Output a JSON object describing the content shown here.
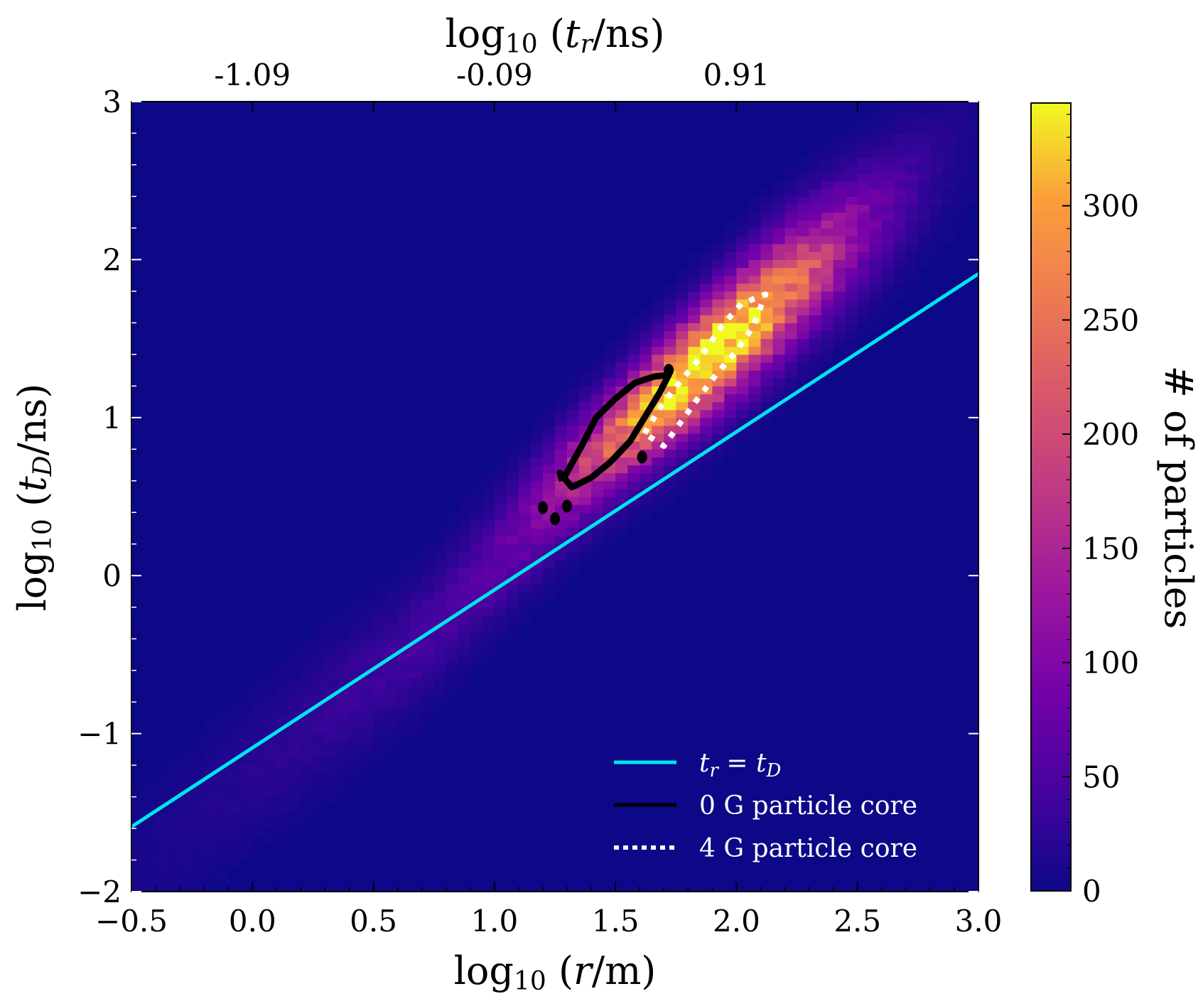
{
  "chart_data": {
    "type": "heatmap",
    "title": "",
    "xlabel": "log10(r/m)",
    "ylabel": "log10(tD/ns)",
    "top_xlabel": "log10(tr/ns)",
    "xlim": [
      -0.5,
      3.0
    ],
    "ylim": [
      -2,
      3
    ],
    "x_ticks": [
      "−0.5",
      "0.0",
      "0.5",
      "1.0",
      "1.5",
      "2.0",
      "2.5",
      "3.0"
    ],
    "x_tick_values": [
      -0.5,
      0.0,
      0.5,
      1.0,
      1.5,
      2.0,
      2.5,
      3.0
    ],
    "y_ticks": [
      "−2",
      "−1",
      "0",
      "1",
      "2",
      "3"
    ],
    "y_tick_values": [
      -2,
      -1,
      0,
      1,
      2,
      3
    ],
    "top_x_ticks": [
      "-1.09",
      "-0.09",
      "0.91"
    ],
    "top_x_tick_values": [
      0.0,
      1.0,
      2.0
    ],
    "colorbar": {
      "label": "# of particles",
      "range": [
        0,
        345
      ],
      "ticks": [
        "0",
        "50",
        "100",
        "150",
        "200",
        "250",
        "300"
      ],
      "tick_values": [
        0,
        50,
        100,
        150,
        200,
        250,
        300
      ],
      "colormap": "plasma"
    },
    "density_ridge": {
      "description_points_x": [
        -0.3,
        0.2,
        0.7,
        1.0,
        1.3,
        1.6,
        1.9,
        2.2,
        2.6,
        2.9
      ],
      "description_points_y": [
        -1.6,
        -1.0,
        -0.4,
        0.1,
        0.6,
        1.0,
        1.4,
        1.8,
        2.3,
        2.7
      ],
      "peak_x": 1.9,
      "peak_y": 1.35,
      "peak_count": 345
    },
    "series": [
      {
        "name": "t_r = t_D",
        "style": "solid",
        "color": "#00e5ee",
        "x": [
          -0.5,
          3.0
        ],
        "y": [
          -1.59,
          1.91
        ]
      },
      {
        "name": "0 G particle core",
        "style": "solid-contour",
        "color": "#000000",
        "x": [
          1.28,
          1.36,
          1.42,
          1.5,
          1.58,
          1.66,
          1.72,
          1.68,
          1.62,
          1.56,
          1.48,
          1.4,
          1.32,
          1.27,
          1.28
        ],
        "y": [
          0.6,
          0.82,
          1.0,
          1.12,
          1.22,
          1.26,
          1.27,
          1.15,
          1.0,
          0.85,
          0.72,
          0.62,
          0.56,
          0.65,
          0.6
        ]
      },
      {
        "name": "4 G particle core",
        "style": "dotted-contour",
        "color": "#ffffff",
        "x": [
          1.62,
          1.7,
          1.78,
          1.86,
          1.94,
          2.02,
          2.12,
          2.07,
          2.0,
          1.92,
          1.84,
          1.76,
          1.7,
          1.62
        ],
        "y": [
          0.9,
          1.1,
          1.25,
          1.4,
          1.58,
          1.72,
          1.78,
          1.58,
          1.42,
          1.28,
          1.12,
          0.95,
          0.82,
          0.9
        ]
      }
    ],
    "legend": {
      "position": "lower-right",
      "entries": [
        {
          "label": "t_r = t_D",
          "color": "#00e5ee",
          "style": "solid"
        },
        {
          "label": "0 G particle core",
          "color": "#000000",
          "style": "solid"
        },
        {
          "label": "4 G particle core",
          "color": "#ffffff",
          "style": "dotted"
        }
      ]
    }
  }
}
